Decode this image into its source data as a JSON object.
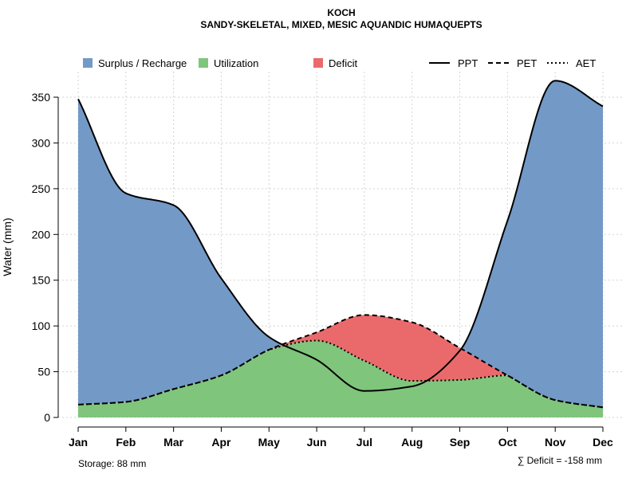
{
  "chart_data": {
    "type": "area",
    "title": "KOCH",
    "subtitle": "SANDY-SKELETAL, MIXED, MESIC AQUANDIC HUMAQUEPTS",
    "xlabel": "",
    "ylabel": "Water (mm)",
    "categories": [
      "Jan",
      "Feb",
      "Mar",
      "Apr",
      "May",
      "Jun",
      "Jul",
      "Aug",
      "Sep",
      "Oct",
      "Nov",
      "Dec"
    ],
    "ylim": [
      0,
      375
    ],
    "yticks": [
      0,
      50,
      100,
      150,
      200,
      250,
      300,
      350
    ],
    "grid": true,
    "series": [
      {
        "name": "PPT",
        "linestyle": "solid",
        "values": [
          348,
          245,
          232,
          152,
          88,
          63,
          29,
          34,
          73,
          215,
          368,
          340
        ]
      },
      {
        "name": "PET",
        "linestyle": "dashed",
        "values": [
          14,
          17,
          31,
          46,
          74,
          93,
          112,
          104,
          76,
          46,
          19,
          11
        ]
      },
      {
        "name": "AET",
        "linestyle": "dotted",
        "values": [
          14,
          17,
          31,
          46,
          74,
          84,
          62,
          40,
          41,
          46,
          19,
          11
        ]
      }
    ],
    "fills": [
      {
        "name": "Surplus / Recharge",
        "color": "#7399c6"
      },
      {
        "name": "Utilization",
        "color": "#7fc57b"
      },
      {
        "name": "Deficit",
        "color": "#ea6a6c"
      }
    ],
    "legend_position": "top",
    "annotations": {
      "storage": "Storage: 88 mm",
      "deficit": "∑ Deficit = -158 mm"
    }
  }
}
